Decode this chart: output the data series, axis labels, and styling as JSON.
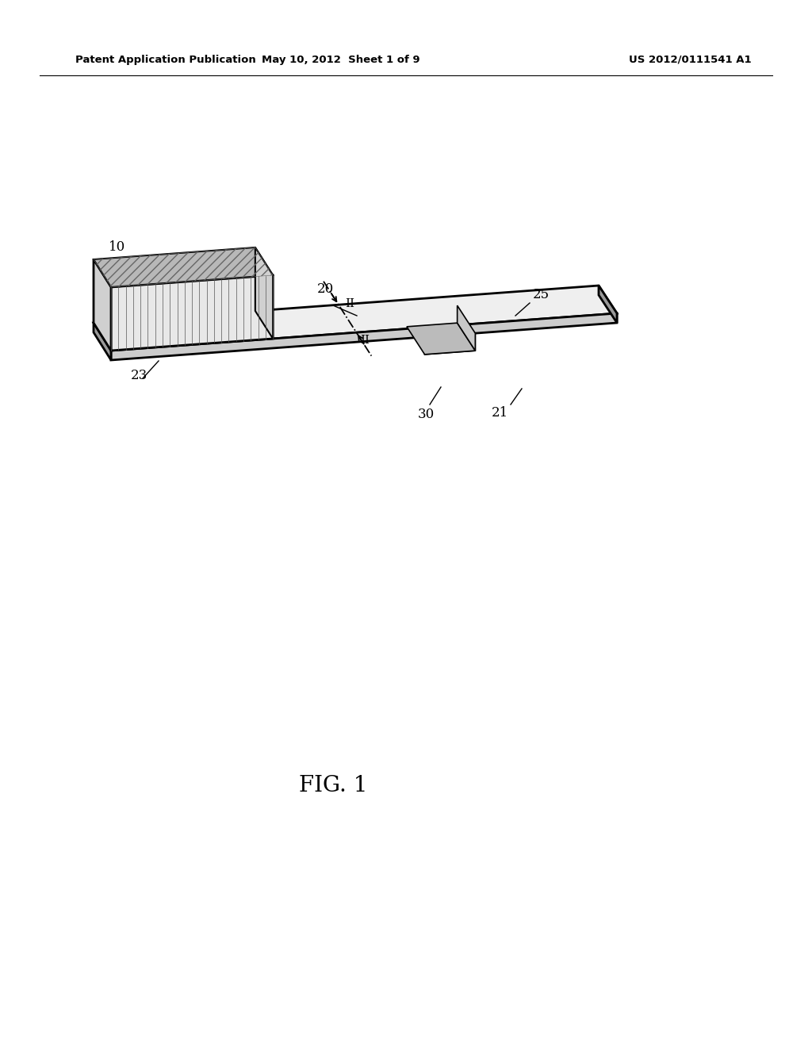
{
  "bg_color": "#ffffff",
  "header_left": "Patent Application Publication",
  "header_mid": "May 10, 2012  Sheet 1 of 9",
  "header_right": "US 2012/0111541 A1",
  "fig_label": "FIG. 1",
  "label_10": "10",
  "label_20": "20",
  "label_21": "21",
  "label_23": "23",
  "label_25": "25",
  "label_30": "30",
  "label_II": "II",
  "plate_color_top": "#efefef",
  "plate_color_front": "#cccccc",
  "plate_color_edge": "#999999",
  "hs_color_front": "#e8e8e8",
  "hs_color_left": "#d0d0d0",
  "hs_color_top": "#c8c8c8",
  "fin_line_color": "#444444",
  "comp_color": "#d8d8d8",
  "line_color": "#000000"
}
